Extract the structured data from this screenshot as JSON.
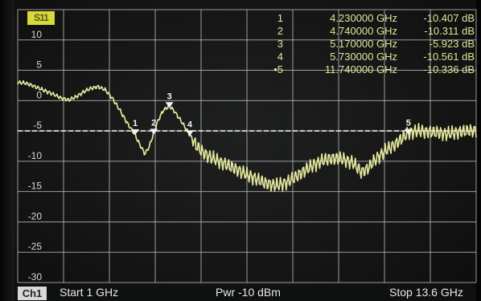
{
  "trace": {
    "badge": "S11",
    "color": "#e2e59a"
  },
  "axis": {
    "y_labels": [
      "10",
      "5",
      "0",
      "-5",
      "-10",
      "-15",
      "-20",
      "-25",
      "-30"
    ],
    "y_top": 10,
    "y_bottom": -35,
    "reference_level": -10,
    "x_start_ghz": 1,
    "x_stop_ghz": 13.6
  },
  "markers": [
    {
      "id": "1",
      "prefix": "",
      "freq": "4.230000 GHz",
      "value": "-10.407 dB",
      "freq_ghz": 4.23,
      "db": -10.407
    },
    {
      "id": "2",
      "prefix": "",
      "freq": "4.740000 GHz",
      "value": "-10.311 dB",
      "freq_ghz": 4.74,
      "db": -10.311
    },
    {
      "id": "3",
      "prefix": "",
      "freq": "5.170000 GHz",
      "value": "-5.923 dB",
      "freq_ghz": 5.17,
      "db": -5.923
    },
    {
      "id": "4",
      "prefix": "",
      "freq": "5.730000 GHz",
      "value": "-10.561 dB",
      "freq_ghz": 5.73,
      "db": -10.561
    },
    {
      "id": "5",
      "prefix": "•",
      "freq": "11.740000 GHz",
      "value": "-10.336 dB",
      "freq_ghz": 11.74,
      "db": -10.336
    }
  ],
  "curve": [
    [
      1.0,
      -2.0
    ],
    [
      1.2,
      -2.1
    ],
    [
      1.4,
      -2.5
    ],
    [
      1.6,
      -3.0
    ],
    [
      1.8,
      -3.5
    ],
    [
      2.0,
      -4.0
    ],
    [
      2.2,
      -4.6
    ],
    [
      2.4,
      -4.9
    ],
    [
      2.6,
      -4.4
    ],
    [
      2.8,
      -3.6
    ],
    [
      3.0,
      -3.0
    ],
    [
      3.2,
      -2.7
    ],
    [
      3.4,
      -3.2
    ],
    [
      3.6,
      -4.6
    ],
    [
      3.8,
      -6.5
    ],
    [
      4.0,
      -8.6
    ],
    [
      4.2,
      -10.4
    ],
    [
      4.35,
      -12.2
    ],
    [
      4.5,
      -13.8
    ],
    [
      4.62,
      -12.5
    ],
    [
      4.74,
      -10.3
    ],
    [
      4.85,
      -8.4
    ],
    [
      5.0,
      -6.6
    ],
    [
      5.17,
      -5.9
    ],
    [
      5.3,
      -6.7
    ],
    [
      5.45,
      -8.0
    ],
    [
      5.6,
      -9.4
    ],
    [
      5.73,
      -10.6
    ],
    [
      5.9,
      -12.4
    ],
    [
      6.1,
      -13.6
    ],
    [
      6.3,
      -14.3
    ],
    [
      6.6,
      -15.2
    ],
    [
      7.0,
      -16.3
    ],
    [
      7.4,
      -17.5
    ],
    [
      7.8,
      -18.6
    ],
    [
      8.1,
      -19.0
    ],
    [
      8.4,
      -18.5
    ],
    [
      8.7,
      -17.3
    ],
    [
      9.0,
      -16.1
    ],
    [
      9.3,
      -15.1
    ],
    [
      9.6,
      -14.5
    ],
    [
      9.9,
      -14.6
    ],
    [
      10.2,
      -15.2
    ],
    [
      10.45,
      -16.8
    ],
    [
      10.6,
      -16.3
    ],
    [
      10.85,
      -14.6
    ],
    [
      11.1,
      -13.3
    ],
    [
      11.4,
      -12.1
    ],
    [
      11.74,
      -10.3
    ],
    [
      12.0,
      -10.0
    ],
    [
      12.4,
      -10.2
    ],
    [
      12.8,
      -10.5
    ],
    [
      13.2,
      -10.1
    ],
    [
      13.6,
      -9.9
    ]
  ],
  "status": {
    "channel": "Ch1",
    "start": "Start  1 GHz",
    "power": "Pwr  -10 dBm",
    "stop": "Stop  13.6 GHz"
  }
}
